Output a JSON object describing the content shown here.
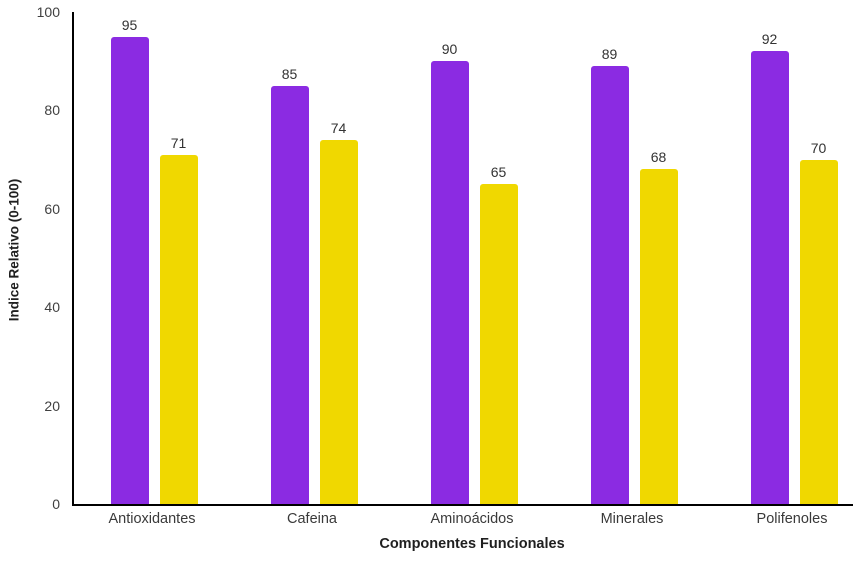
{
  "chart_data": {
    "type": "bar",
    "title": "",
    "categories": [
      "Antioxidantes",
      "Cafeina",
      "Aminoácidos",
      "Minerales",
      "Polifenoles"
    ],
    "series": [
      {
        "color": "#8B2BE2",
        "values": [
          95,
          85,
          90,
          89,
          92
        ]
      },
      {
        "color": "#F0D800",
        "values": [
          71,
          74,
          65,
          68,
          70
        ]
      }
    ],
    "xlabel": "Componentes Funcionales",
    "ylabel": "Indice Relativo (0-100)",
    "ylim": [
      0,
      100
    ],
    "yticks": [
      0,
      20,
      40,
      60,
      80,
      100
    ],
    "grid": false,
    "legend": "none",
    "data_labels": true,
    "axis_color": "#000000"
  }
}
